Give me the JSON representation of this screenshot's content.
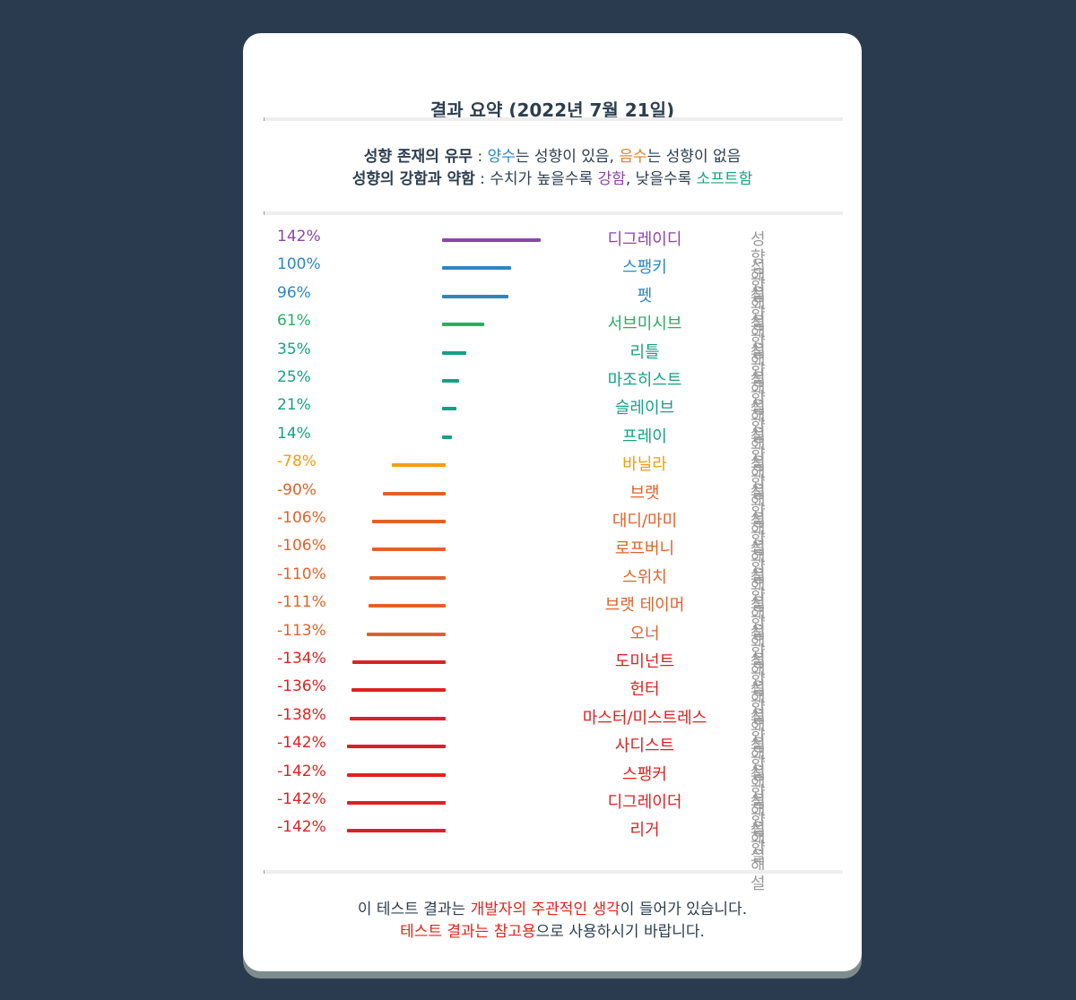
{
  "title": "결과 요약 (2022년 7월 21일)",
  "legend": {
    "line1": {
      "label": "성향 존재의 유무",
      "sep": " : ",
      "positive_word": "양수",
      "positive_rest": "는 성향이 있음, ",
      "negative_word": "음수",
      "negative_rest": "는 성향이 없음"
    },
    "line2": {
      "label": "성향의 강함과 약함",
      "sep": " : ",
      "text1": "수치가 높을수록 ",
      "strong_word": "강함",
      "text2": ", 낮을수록 ",
      "soft_word": "소프트함"
    }
  },
  "explain_label": "성향 해설",
  "footer": {
    "line1_pre": "이 테스트 결과는 ",
    "line1_highlight": "개발자의 주관적인 생각",
    "line1_post": "이 들어가 있습니다.",
    "line2_highlight": "테스트 결과는 참고용",
    "line2_post": "으로 사용하시기 바랍니다."
  },
  "colors": {
    "purple": "#8e44ad",
    "blue": "#2e86c1",
    "green": "#27ae60",
    "teal": "#16a085",
    "yellow": "#f39c12",
    "orange": "#e0622a",
    "red": "#e02020"
  },
  "chart_data": {
    "type": "bar",
    "orientation": "horizontal",
    "categories": [
      "디그레이디",
      "스팽키",
      "펫",
      "서브미시브",
      "리틀",
      "마조히스트",
      "슬레이브",
      "프레이",
      "바닐라",
      "브랫",
      "대디/마미",
      "로프버니",
      "스위치",
      "브랫 테이머",
      "오너",
      "도미넌트",
      "헌터",
      "마스터/미스트레스",
      "사디스트",
      "스팽커",
      "디그레이더",
      "리거"
    ],
    "values": [
      142,
      100,
      96,
      61,
      35,
      25,
      21,
      14,
      -78,
      -90,
      -106,
      -106,
      -110,
      -111,
      -113,
      -134,
      -136,
      -138,
      -142,
      -142,
      -142,
      -142
    ],
    "value_labels": [
      "142%",
      "100%",
      "96%",
      "61%",
      "35%",
      "25%",
      "21%",
      "14%",
      "-78%",
      "-90%",
      "-106%",
      "-106%",
      "-110%",
      "-111%",
      "-113%",
      "-134%",
      "-136%",
      "-138%",
      "-142%",
      "-142%",
      "-142%",
      "-142%"
    ],
    "colors": [
      "purple",
      "blue",
      "blue",
      "green",
      "teal",
      "teal",
      "teal",
      "teal",
      "yellow",
      "orange",
      "orange",
      "orange",
      "orange",
      "orange",
      "orange",
      "red",
      "red",
      "red",
      "red",
      "red",
      "red",
      "red"
    ],
    "unit": "%"
  }
}
